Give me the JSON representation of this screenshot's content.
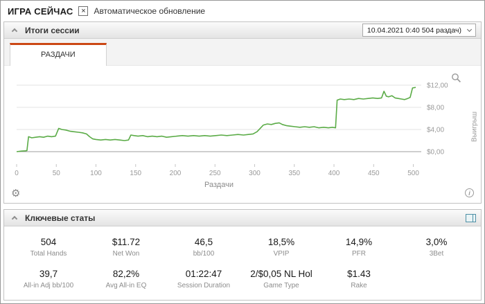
{
  "colors": {
    "accent": "#cb4714",
    "chart_line": "#5aab46"
  },
  "topbar": {
    "title": "ИГРА СЕЙЧАС",
    "checkbox_glyph": "×",
    "autoupdate_label": "Автоматическое обновление"
  },
  "session_panel": {
    "title": "Итоги сессии",
    "session_value": "10.04.2021 0:40 504 раздач)",
    "tab_label": "РАЗДАЧИ"
  },
  "chart_data": {
    "type": "line",
    "title": "",
    "xlabel": "Раздачи",
    "ylabel": "Выигрыш",
    "x_ticks": [
      0,
      50,
      100,
      150,
      200,
      250,
      300,
      350,
      400,
      450,
      500
    ],
    "y_ticks": [
      "$0,00",
      "$4,00",
      "$8,00",
      "$12,00"
    ],
    "y_tick_values": [
      0,
      4,
      8,
      12
    ],
    "xlim": [
      0,
      510
    ],
    "ylim": [
      -2,
      13
    ],
    "grid": true,
    "legend": false,
    "series": [
      {
        "name": "Выигрыш",
        "x": [
          0,
          6,
          11,
          13,
          15,
          19,
          24,
          29,
          34,
          39,
          44,
          49,
          53,
          57,
          62,
          67,
          72,
          78,
          83,
          88,
          92,
          96,
          100,
          106,
          112,
          118,
          124,
          130,
          136,
          141,
          144,
          148,
          153,
          159,
          165,
          171,
          177,
          183,
          189,
          195,
          202,
          209,
          216,
          223,
          230,
          237,
          244,
          251,
          258,
          265,
          272,
          279,
          286,
          292,
          298,
          303,
          307,
          311,
          316,
          321,
          326,
          331,
          335,
          340,
          345,
          351,
          357,
          363,
          369,
          375,
          381,
          387,
          393,
          398,
          402,
          404,
          408,
          413,
          419,
          425,
          431,
          437,
          443,
          449,
          455,
          460,
          463,
          466,
          469,
          473,
          477,
          481,
          485,
          489,
          493,
          496,
          499,
          503
        ],
        "y": [
          0,
          0.1,
          0.15,
          0.2,
          2.7,
          2.5,
          2.6,
          2.7,
          2.6,
          2.8,
          2.7,
          2.8,
          4.2,
          4.0,
          3.9,
          3.7,
          3.6,
          3.5,
          3.4,
          3.2,
          2.7,
          2.3,
          2.2,
          2.1,
          2.2,
          2.1,
          2.2,
          2.1,
          2.0,
          2.1,
          3.0,
          2.9,
          2.8,
          2.9,
          2.7,
          2.8,
          2.7,
          2.8,
          2.6,
          2.7,
          2.8,
          2.9,
          2.8,
          2.9,
          2.8,
          2.9,
          2.8,
          2.9,
          3.0,
          2.9,
          3.0,
          3.1,
          3.0,
          3.1,
          3.2,
          3.6,
          4.2,
          4.8,
          5.0,
          4.9,
          5.1,
          5.2,
          4.9,
          4.7,
          4.6,
          4.5,
          4.4,
          4.5,
          4.4,
          4.5,
          4.3,
          4.4,
          4.3,
          4.4,
          4.3,
          9.3,
          9.5,
          9.4,
          9.5,
          9.4,
          9.6,
          9.5,
          9.6,
          9.7,
          9.6,
          9.7,
          10.9,
          10.0,
          9.9,
          10.1,
          9.7,
          9.6,
          9.5,
          9.4,
          9.6,
          9.8,
          11.5,
          11.6
        ]
      }
    ]
  },
  "icons": {
    "gear": "⚙",
    "info": "i"
  },
  "stats_panel": {
    "title": "Ключевые статы",
    "stats": [
      {
        "value": "504",
        "label": "Total Hands"
      },
      {
        "value": "$11.72",
        "label": "Net Won"
      },
      {
        "value": "46,5",
        "label": "bb/100"
      },
      {
        "value": "18,5%",
        "label": "VPIP"
      },
      {
        "value": "14,9%",
        "label": "PFR"
      },
      {
        "value": "3,0%",
        "label": "3Bet"
      },
      {
        "value": "39,7",
        "label": "All-in Adj bb/100"
      },
      {
        "value": "82,2%",
        "label": "Avg All-in EQ"
      },
      {
        "value": "01:22:47",
        "label": "Session Duration"
      },
      {
        "value": "2/$0,05 NL Hol",
        "label": "Game Type"
      },
      {
        "value": "$1.43",
        "label": "Rake"
      }
    ]
  }
}
